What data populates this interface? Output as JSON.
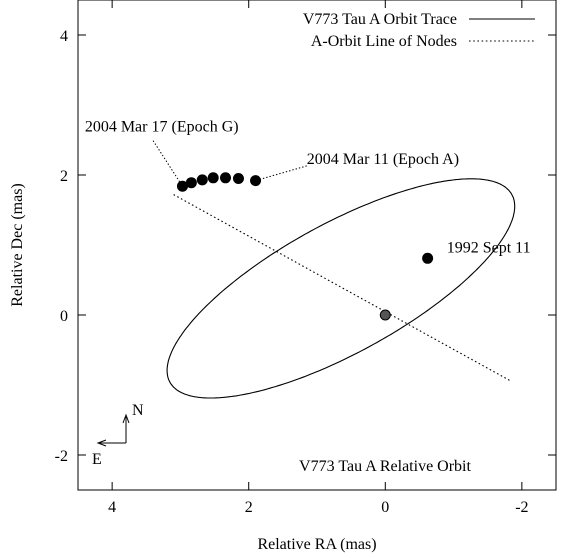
{
  "chart_data": {
    "type": "scatter",
    "title": "V773 Tau A Relative Orbit",
    "xlabel": "Relative RA (mas)",
    "ylabel": "Relative Dec (mas)",
    "xlim": [
      4.5,
      -2.5
    ],
    "ylim": [
      -2.5,
      4.5
    ],
    "x_reversed": true,
    "xticks": [
      4,
      2,
      0,
      -2
    ],
    "yticks": [
      -2,
      0,
      2,
      4
    ],
    "grid": false,
    "legend_position": "top-right",
    "series": [
      {
        "name": "V773 Tau A Orbit Trace",
        "style": "solid-line"
      },
      {
        "name": "A-Orbit Line of Nodes",
        "style": "dotted-line",
        "points": [
          [
            3.1,
            1.72
          ],
          [
            -1.85,
            -0.95
          ]
        ]
      }
    ],
    "orbit_ellipse": {
      "center": [
        0.65,
        0.38
      ],
      "semi_major": 2.84,
      "semi_minor": 0.93,
      "position_angle_deg": -28
    },
    "observations": [
      {
        "x": 2.97,
        "y": 1.84
      },
      {
        "x": 2.84,
        "y": 1.89
      },
      {
        "x": 2.68,
        "y": 1.93
      },
      {
        "x": 2.52,
        "y": 1.96
      },
      {
        "x": 2.34,
        "y": 1.96
      },
      {
        "x": 2.15,
        "y": 1.95
      },
      {
        "x": 1.9,
        "y": 1.92
      },
      {
        "x": -0.62,
        "y": 0.81
      }
    ],
    "primary_star": {
      "x": 0.0,
      "y": 0.0
    },
    "annotations": [
      {
        "text": "2004 Mar 17 (Epoch G)",
        "x": 4.4,
        "y": 2.62,
        "anchor": "start",
        "line_from": [
          3.4,
          2.49
        ],
        "line_to": [
          2.97,
          1.84
        ]
      },
      {
        "text": "2004 Mar 11 (Epoch A)",
        "x": 1.15,
        "y": 2.16,
        "anchor": "start",
        "line_from": [
          1.15,
          2.13
        ],
        "line_to": [
          1.9,
          1.92
        ]
      },
      {
        "text": "1992 Sept 11",
        "x": -0.9,
        "y": 0.89,
        "anchor": "start"
      }
    ],
    "compass": {
      "north_label": "N",
      "east_label": "E"
    }
  }
}
